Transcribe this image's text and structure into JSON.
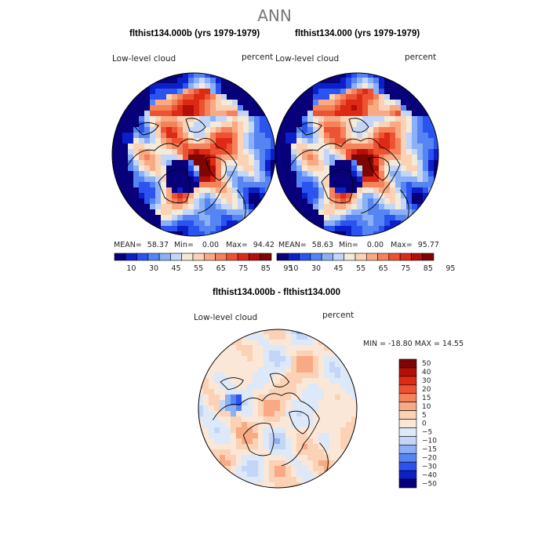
{
  "main_title": "ANN",
  "chart_data": [
    {
      "type": "heatmap",
      "projection": "north polar stereographic",
      "title": "flthist134.000b (yrs 1979-1979)",
      "variable": "Low-level cloud",
      "units": "percent",
      "stats": {
        "mean_label": "MEAN=",
        "mean": "58.37",
        "min_label": "Min=",
        "min": "0.00",
        "max_label": "Max=",
        "max": "94.42"
      },
      "colorbar_ticks": [
        "10",
        "30",
        "45",
        "55",
        "65",
        "75",
        "85",
        "95"
      ],
      "colorbar_colors": [
        "#08007a",
        "#0b20c8",
        "#2a53ef",
        "#5684f3",
        "#8bb0f5",
        "#c4d6f8",
        "#f3ead9",
        "#fbd2b5",
        "#f8aa84",
        "#f4825a",
        "#ec5333",
        "#dc2a15",
        "#b40e08",
        "#7e0504"
      ]
    },
    {
      "type": "heatmap",
      "projection": "north polar stereographic",
      "title": "flthist134.000 (yrs 1979-1979)",
      "variable": "Low-level cloud",
      "units": "percent",
      "stats": {
        "mean_label": "MEAN=",
        "mean": "58.63",
        "min_label": "Min=",
        "min": "0.00",
        "max_label": "Max=",
        "max": "95.77"
      },
      "colorbar_ticks": [
        "10",
        "30",
        "45",
        "55",
        "65",
        "75",
        "85",
        "95"
      ],
      "colorbar_colors": [
        "#08007a",
        "#0b20c8",
        "#2a53ef",
        "#5684f3",
        "#8bb0f5",
        "#c4d6f8",
        "#f3ead9",
        "#fbd2b5",
        "#f8aa84",
        "#f4825a",
        "#ec5333",
        "#dc2a15",
        "#b40e08",
        "#7e0504"
      ]
    },
    {
      "type": "heatmap",
      "projection": "north polar stereographic",
      "title": "flthist134.000b - flthist134.000",
      "variable": "Low-level cloud",
      "units": "percent",
      "stats_text": "MIN = -18.80 MAX =  14.55",
      "colorbar_ticks": [
        "50",
        "40",
        "30",
        "20",
        "15",
        "10",
        "5",
        "0",
        "−5",
        "−10",
        "−15",
        "−20",
        "−30",
        "−40",
        "−50"
      ],
      "colorbar_colors": [
        "#7e0504",
        "#b40e08",
        "#dc2a15",
        "#ec5333",
        "#f4825a",
        "#f8aa84",
        "#fbd2b5",
        "#fbe7d8",
        "#dde8f8",
        "#c4d6f8",
        "#8bb0f5",
        "#5684f3",
        "#2a53ef",
        "#0b20c8",
        "#08007a"
      ]
    }
  ]
}
